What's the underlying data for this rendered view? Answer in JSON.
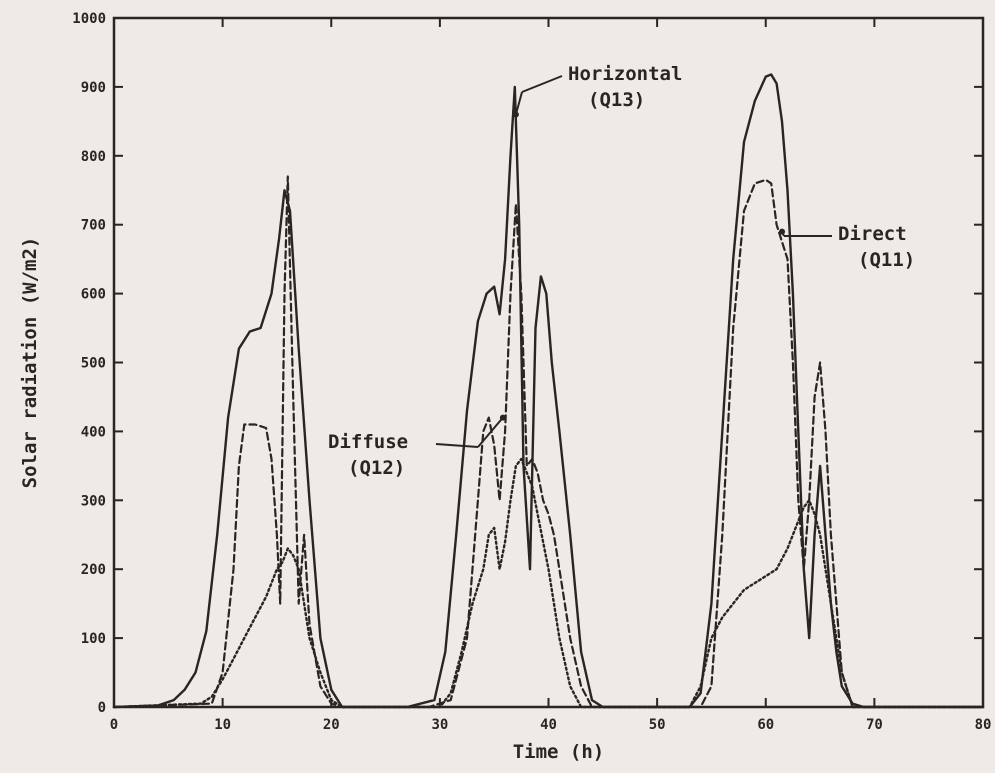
{
  "chart_data": {
    "type": "line",
    "title": "",
    "xlabel": "Time (h)",
    "ylabel": "Solar radiation (W/m2)",
    "xlim": [
      0,
      80
    ],
    "ylim": [
      0,
      1000
    ],
    "xticks": [
      0,
      10,
      20,
      30,
      40,
      50,
      60,
      70,
      80
    ],
    "xtick_labels": [
      "0",
      "10",
      "20",
      "30",
      "40",
      "50",
      "60",
      "70",
      "80"
    ],
    "yticks": [
      0,
      100,
      200,
      300,
      400,
      500,
      600,
      700,
      800,
      900,
      1000
    ],
    "ytick_labels": [
      "0",
      "100",
      "200",
      "300",
      "400",
      "500",
      "600",
      "700",
      "800",
      "900",
      "1000"
    ],
    "grid": false,
    "legend": "none (series identified by in-plot annotations)",
    "series": [
      {
        "name": "Horizontal (Q13)",
        "style": "solid",
        "x": [
          0,
          4,
          5.5,
          6.5,
          7.5,
          8.5,
          9.5,
          10.5,
          11.5,
          12.5,
          13.5,
          14.5,
          15.2,
          15.7,
          16.2,
          17,
          18,
          19,
          20,
          21,
          27,
          29.5,
          30.5,
          31.5,
          32.5,
          33.5,
          34.3,
          35,
          35.5,
          36,
          36.5,
          36.9,
          37.3,
          37.7,
          38.3,
          38.8,
          39.3,
          39.8,
          40.3,
          41,
          42,
          43,
          44,
          45,
          53,
          54,
          55,
          56,
          57,
          58,
          59,
          60,
          60.5,
          61,
          61.5,
          62,
          62.5,
          63,
          63.5,
          64,
          64.5,
          65,
          65.5,
          66,
          66.5,
          67,
          68,
          69,
          80
        ],
        "values": [
          0,
          2,
          10,
          25,
          50,
          110,
          250,
          420,
          520,
          545,
          550,
          600,
          680,
          750,
          720,
          520,
          300,
          100,
          25,
          0,
          0,
          10,
          80,
          250,
          430,
          560,
          600,
          610,
          570,
          650,
          800,
          900,
          700,
          350,
          200,
          550,
          625,
          600,
          500,
          400,
          250,
          80,
          10,
          0,
          0,
          20,
          150,
          400,
          650,
          820,
          880,
          915,
          918,
          905,
          850,
          750,
          600,
          400,
          200,
          100,
          250,
          350,
          250,
          150,
          80,
          30,
          5,
          0,
          0
        ]
      },
      {
        "name": "Direct (Q11)",
        "style": "dashed",
        "x": [
          0,
          9,
          10,
          11,
          11.5,
          12,
          13,
          14,
          14.5,
          15,
          15.3,
          15.7,
          16,
          16.5,
          17,
          17.5,
          18,
          19,
          20,
          21,
          29,
          31,
          32.5,
          33.5,
          34,
          34.5,
          35,
          35.5,
          36,
          36.5,
          37,
          37.5,
          38,
          38.5,
          39,
          39.5,
          40,
          40.5,
          41,
          42,
          43,
          44,
          54,
          55,
          56,
          57,
          58,
          59,
          60,
          60.5,
          61,
          62,
          62.5,
          63,
          63.5,
          64,
          64.5,
          65,
          65.5,
          66,
          66.5,
          67,
          68,
          80
        ],
        "values": [
          0,
          5,
          50,
          200,
          350,
          410,
          410,
          405,
          360,
          250,
          150,
          600,
          770,
          450,
          150,
          250,
          120,
          30,
          5,
          0,
          0,
          10,
          100,
          300,
          400,
          420,
          380,
          300,
          400,
          600,
          730,
          600,
          350,
          360,
          340,
          300,
          280,
          250,
          200,
          100,
          30,
          0,
          0,
          30,
          250,
          550,
          720,
          760,
          765,
          760,
          700,
          650,
          500,
          300,
          200,
          300,
          450,
          500,
          400,
          250,
          150,
          50,
          0,
          0
        ]
      },
      {
        "name": "Diffuse (Q12)",
        "style": "dotted",
        "x": [
          0,
          8,
          9,
          10,
          11,
          12,
          13,
          14,
          14.5,
          15,
          15.5,
          16,
          16.5,
          17,
          17.5,
          18,
          19,
          20,
          21,
          30,
          31,
          32,
          33,
          34,
          34.5,
          35,
          35.5,
          36,
          36.5,
          37,
          37.5,
          38,
          38.5,
          39,
          40,
          41,
          42,
          43,
          53,
          54,
          55,
          56,
          57,
          58,
          59,
          60,
          61,
          62,
          62.5,
          63,
          63.5,
          64,
          64.5,
          65,
          65.5,
          66,
          67,
          68,
          80
        ],
        "values": [
          0,
          5,
          15,
          40,
          70,
          100,
          130,
          160,
          180,
          200,
          210,
          230,
          220,
          200,
          150,
          100,
          50,
          10,
          0,
          0,
          20,
          80,
          150,
          200,
          250,
          260,
          200,
          240,
          300,
          350,
          360,
          340,
          320,
          280,
          200,
          100,
          30,
          0,
          0,
          30,
          100,
          130,
          150,
          170,
          180,
          190,
          200,
          230,
          250,
          270,
          290,
          300,
          280,
          250,
          200,
          150,
          50,
          0,
          0
        ]
      }
    ],
    "annotations": [
      {
        "lines": [
          "Horizontal",
          "(Q13)"
        ],
        "points_to": {
          "x": 37,
          "y": 860
        }
      },
      {
        "lines": [
          "Direct",
          "(Q11)"
        ],
        "points_to": {
          "x": 61.5,
          "y": 690
        }
      },
      {
        "lines": [
          "Diffuse",
          "(Q12)"
        ],
        "points_to": {
          "x": 35.8,
          "y": 420
        }
      }
    ]
  }
}
